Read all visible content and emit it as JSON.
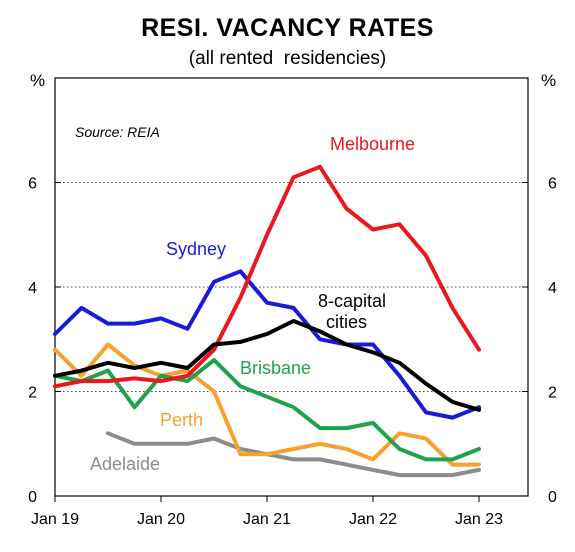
{
  "chart_data": {
    "type": "line",
    "title": "RESI. VACANCY RATES",
    "subtitle": "(all rented  residencies)",
    "y_unit_left": "%",
    "y_unit_right": "%",
    "source": "Source: REIA",
    "x_start": "2019-01",
    "x_step_months": 3,
    "x_ticks": [
      "Jan 19",
      "Jan 20",
      "Jan 21",
      "Jan 22",
      "Jan 23"
    ],
    "y_ticks": [
      "0",
      "2",
      "4",
      "6"
    ],
    "ylim": [
      0,
      8
    ],
    "grid": "horizontal dotted at 2, 4, 6",
    "series": [
      {
        "name": "Melbourne",
        "color": "#e8181e",
        "values": [
          2.1,
          2.2,
          2.2,
          2.25,
          2.2,
          2.3,
          2.8,
          3.8,
          5.0,
          6.1,
          6.3,
          5.5,
          5.1,
          5.2,
          4.6,
          3.6,
          2.8
        ]
      },
      {
        "name": "Sydney",
        "color": "#1a1adc",
        "values": [
          3.1,
          3.6,
          3.3,
          3.3,
          3.4,
          3.2,
          4.1,
          4.3,
          3.7,
          3.6,
          3.0,
          2.9,
          2.9,
          2.3,
          1.6,
          1.5,
          1.7
        ]
      },
      {
        "name": "8-capital cities",
        "label": [
          "8-capital",
          "cities"
        ],
        "color": "#000000",
        "values": [
          2.3,
          2.4,
          2.55,
          2.45,
          2.55,
          2.45,
          2.9,
          2.95,
          3.1,
          3.35,
          3.15,
          2.9,
          2.75,
          2.55,
          2.15,
          1.8,
          1.65
        ]
      },
      {
        "name": "Brisbane",
        "color": "#1ea34b",
        "values": [
          2.3,
          2.2,
          2.4,
          1.7,
          2.3,
          2.2,
          2.6,
          2.1,
          1.9,
          1.7,
          1.3,
          1.3,
          1.4,
          0.9,
          0.7,
          0.7,
          0.9
        ]
      },
      {
        "name": "Perth",
        "color": "#f7a12d",
        "values": [
          2.8,
          2.3,
          2.9,
          2.5,
          2.3,
          2.4,
          2.0,
          0.8,
          0.8,
          0.9,
          1.0,
          0.9,
          0.7,
          1.2,
          1.1,
          0.6,
          0.6
        ]
      },
      {
        "name": "Adelaide",
        "color": "#8c8c8c",
        "values": [
          null,
          null,
          1.2,
          1.0,
          1.0,
          1.0,
          1.1,
          0.9,
          0.8,
          0.7,
          0.7,
          0.6,
          0.5,
          0.4,
          0.4,
          0.4,
          0.5
        ]
      }
    ]
  }
}
